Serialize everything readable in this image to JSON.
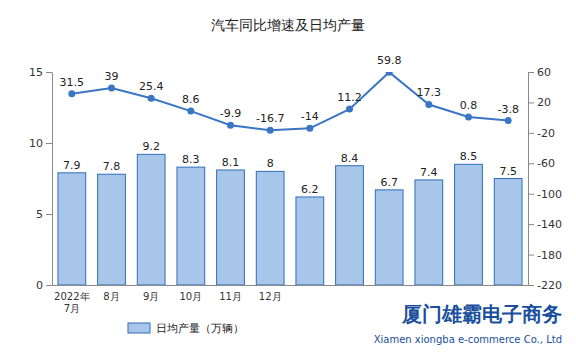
{
  "chart_data": {
    "type": "bar",
    "title": "汽车同比增速及日均产量",
    "categories": [
      "2022年\n7月",
      "8月",
      "9月",
      "10月",
      "11月",
      "12月",
      null,
      null,
      null,
      null,
      null,
      null
    ],
    "series": [
      {
        "name": "日均产量（万辆）",
        "type": "bar",
        "color": "#a8c6ea",
        "values": [
          7.9,
          7.8,
          9.2,
          8.3,
          8.1,
          8.0,
          6.2,
          8.4,
          6.7,
          7.4,
          8.5,
          7.5
        ]
      },
      {
        "type": "line",
        "axis": "y2",
        "color": "#3a76c4",
        "marker": "circle",
        "values": [
          31.5,
          39.0,
          25.4,
          8.6,
          -9.9,
          -16.7,
          -14.0,
          11.2,
          59.8,
          17.3,
          0.8,
          -3.8
        ]
      }
    ],
    "ylim": [
      0,
      15
    ],
    "yticks": [
      0,
      5,
      10,
      15
    ],
    "y2lim": [
      -220,
      60
    ],
    "y2ticks": [
      -220,
      -180,
      -140,
      -100,
      -60,
      -20,
      20,
      60
    ],
    "grid": false,
    "data_labels": true,
    "legend": "bottom-left",
    "annotations": [
      "厦门雄霸电子商务",
      "Xiamen xiongba e-commerce Co., Ltd"
    ]
  }
}
